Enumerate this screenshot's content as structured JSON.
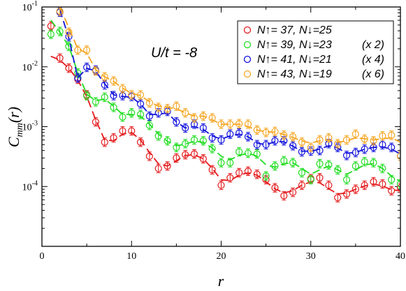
{
  "chart_data": {
    "type": "scatter",
    "x_scale": "linear",
    "y_scale": "log",
    "xlim": [
      0,
      40
    ],
    "ylim": [
      1e-05,
      0.1
    ],
    "xlabel": "r",
    "ylabel": "C_mm(r)",
    "ylabel_parts": {
      "main": "C",
      "sub": "mm",
      "suffix": "(r)"
    },
    "x_ticks": [
      0,
      10,
      20,
      30,
      40
    ],
    "x_tick_labels": [
      "0",
      "10",
      "20",
      "30",
      "40"
    ],
    "y_ticks": [
      0.0001,
      0.001,
      0.01,
      0.1
    ],
    "y_tick_labels": [
      {
        "base": "10",
        "exp": "-4"
      },
      {
        "base": "10",
        "exp": "-3"
      },
      {
        "base": "10",
        "exp": "-2"
      },
      {
        "base": "10",
        "exp": "-1"
      }
    ],
    "annotation": "U/t = -8",
    "legend_position": "top-right",
    "series": [
      {
        "name": "N↑= 37, N↓=25",
        "multiplier": "",
        "color": "#e41a1c",
        "x": [
          1,
          2,
          3,
          4,
          5,
          6,
          7,
          8,
          9,
          10,
          11,
          12,
          13,
          14,
          15,
          16,
          17,
          18,
          19,
          20,
          21,
          22,
          23,
          24,
          25,
          26,
          27,
          28,
          29,
          30,
          31,
          32,
          33,
          34,
          35,
          36,
          37,
          38,
          39,
          40
        ],
        "y": [
          0.048,
          0.014,
          0.0095,
          0.0062,
          0.0034,
          0.0012,
          0.00055,
          0.00065,
          0.00085,
          0.00085,
          0.00055,
          0.00032,
          0.0002,
          0.00022,
          0.0003,
          0.00034,
          0.00035,
          0.00029,
          0.00019,
          0.000105,
          0.00014,
          0.00017,
          0.00018,
          0.00016,
          0.00013,
          9.5e-05,
          7e-05,
          8e-05,
          0.000105,
          0.000135,
          0.00014,
          0.000105,
          6.5e-05,
          7.5e-05,
          9e-05,
          0.000105,
          0.00012,
          0.00011,
          8.5e-05,
          9.5e-05
        ],
        "fit": [
          0.015,
          0.013,
          0.0095,
          0.006,
          0.0032,
          0.0013,
          0.0006,
          0.00058,
          0.00075,
          0.0008,
          0.0006,
          0.00037,
          0.00024,
          0.00022,
          0.00027,
          0.00033,
          0.00034,
          0.00029,
          0.0002,
          0.00013,
          0.000125,
          0.000155,
          0.00017,
          0.000155,
          0.00012,
          9.2e-05,
          7.8e-05,
          8.5e-05,
          0.000105,
          0.00012,
          0.000115,
          9.2e-05,
          7.5e-05,
          7.8e-05,
          9e-05,
          0.000102,
          0.00011,
          0.000102,
          8.8e-05,
          8.5e-05
        ]
      },
      {
        "name": "N↑= 39, N↓=23",
        "multiplier": "(x 2)",
        "color": "#22dd22",
        "x": [
          1,
          2,
          3,
          4,
          5,
          6,
          7,
          8,
          9,
          10,
          11,
          12,
          13,
          14,
          15,
          16,
          17,
          18,
          19,
          20,
          21,
          22,
          23,
          24,
          25,
          26,
          27,
          28,
          29,
          30,
          31,
          32,
          33,
          34,
          35,
          36,
          37,
          38,
          39,
          40
        ],
        "y": [
          0.035,
          0.039,
          0.022,
          0.0079,
          0.0033,
          0.0026,
          0.0031,
          0.0021,
          0.00145,
          0.0017,
          0.0016,
          0.00105,
          0.0007,
          0.00058,
          0.00045,
          0.00052,
          0.0006,
          0.00058,
          0.00043,
          0.00025,
          0.00025,
          0.00038,
          0.00036,
          0.00035,
          0.00015,
          0.00022,
          0.00027,
          0.00025,
          0.00017,
          0.00013,
          0.00024,
          0.00023,
          0.00019,
          0.00013,
          0.00022,
          0.00026,
          0.00025,
          0.0002,
          0.00013,
          0.00011
        ],
        "fit": [
          0.06,
          0.038,
          0.022,
          0.008,
          0.0035,
          0.0027,
          0.0029,
          0.0022,
          0.0016,
          0.0016,
          0.0015,
          0.0011,
          0.00075,
          0.00057,
          0.00048,
          0.00051,
          0.00057,
          0.00055,
          0.00044,
          0.00032,
          0.00028,
          0.00033,
          0.00036,
          0.00032,
          0.00023,
          0.00021,
          0.00024,
          0.00025,
          0.0002,
          0.00016,
          0.00019,
          0.00022,
          0.00019,
          0.00016,
          0.00019,
          0.00023,
          0.00024,
          0.0002,
          0.00015,
          0.00012
        ]
      },
      {
        "name": "N↑= 41, N↓=21",
        "multiplier": "(x 4)",
        "color": "#1111dd",
        "x": [
          2,
          3,
          4,
          5,
          6,
          7,
          8,
          9,
          10,
          11,
          12,
          13,
          14,
          15,
          16,
          17,
          18,
          19,
          20,
          21,
          22,
          23,
          24,
          25,
          26,
          27,
          28,
          29,
          30,
          31,
          32,
          33,
          34,
          35,
          36,
          37,
          38,
          39,
          40
        ],
        "y": [
          0.082,
          0.032,
          0.0065,
          0.0098,
          0.0088,
          0.005,
          0.0033,
          0.0033,
          0.0032,
          0.0024,
          0.0015,
          0.0017,
          0.0018,
          0.0012,
          0.00095,
          0.0011,
          0.00095,
          0.00065,
          0.0006,
          0.00075,
          0.00078,
          0.00068,
          0.0005,
          0.0005,
          0.00058,
          0.00058,
          0.00048,
          0.00038,
          0.00039,
          0.0004,
          0.00052,
          0.00045,
          0.00033,
          0.00037,
          0.00042,
          0.00045,
          0.0005,
          0.00045,
          0.00032
        ],
        "fit": [
          0.09,
          0.03,
          0.0065,
          0.0095,
          0.0085,
          0.0052,
          0.0034,
          0.0032,
          0.0031,
          0.0024,
          0.0016,
          0.0016,
          0.0017,
          0.0012,
          0.00095,
          0.001,
          0.0009,
          0.0007,
          0.00062,
          0.0007,
          0.00075,
          0.00068,
          0.00053,
          0.0005,
          0.00056,
          0.00056,
          0.00047,
          0.00039,
          0.00039,
          0.00042,
          0.00048,
          0.00044,
          0.00036,
          0.00037,
          0.00042,
          0.00045,
          0.00046,
          0.00042,
          0.00035
        ]
      },
      {
        "name": "N↑= 43, N↓=19",
        "multiplier": "(x 6)",
        "color": "#f5a623",
        "x": [
          2,
          3,
          4,
          5,
          6,
          7,
          8,
          9,
          10,
          11,
          12,
          13,
          14,
          15,
          16,
          17,
          18,
          19,
          20,
          21,
          22,
          23,
          24,
          25,
          26,
          27,
          28,
          29,
          30,
          31,
          32,
          33,
          34,
          35,
          36,
          37,
          38,
          39,
          40
        ],
        "y": [
          0.085,
          0.038,
          0.019,
          0.019,
          0.0085,
          0.0068,
          0.0058,
          0.0043,
          0.0034,
          0.0034,
          0.0025,
          0.0021,
          0.002,
          0.0022,
          0.0017,
          0.0014,
          0.0015,
          0.0014,
          0.0011,
          0.0011,
          0.00112,
          0.0011,
          0.00088,
          0.0008,
          0.00083,
          0.00072,
          0.00068,
          0.00055,
          0.00045,
          0.0006,
          0.00065,
          0.00052,
          0.0006,
          0.00075,
          0.00062,
          0.00058,
          0.0007,
          0.00072,
          0.00032
        ],
        "fit": [
          0.1,
          0.045,
          0.02,
          0.017,
          0.009,
          0.0068,
          0.0057,
          0.0044,
          0.0036,
          0.0033,
          0.0026,
          0.0022,
          0.0021,
          0.002,
          0.0017,
          0.0015,
          0.0015,
          0.0013,
          0.0011,
          0.0011,
          0.0011,
          0.001,
          0.00088,
          0.00082,
          0.00081,
          0.00074,
          0.00066,
          0.00058,
          0.00053,
          0.00058,
          0.0006,
          0.00055,
          0.00058,
          0.00065,
          0.00063,
          0.0006,
          0.00063,
          0.00065,
          0.00055
        ]
      }
    ]
  }
}
